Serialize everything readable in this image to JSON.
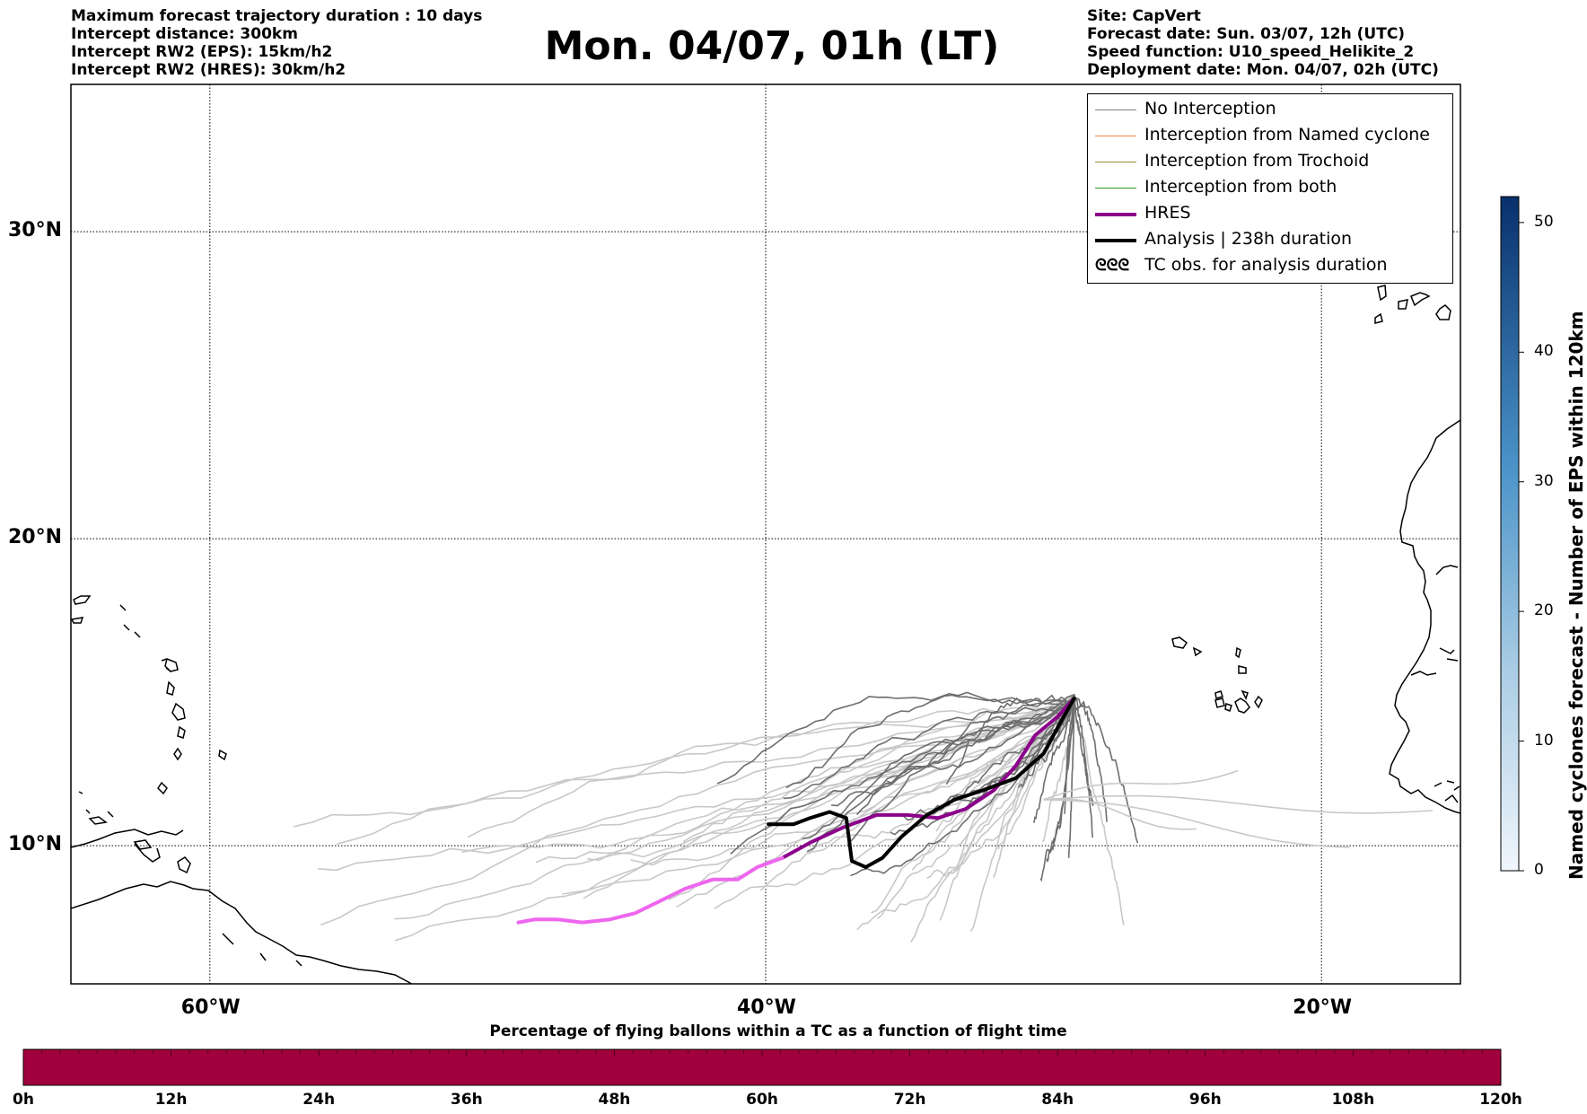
{
  "header": {
    "left_lines": [
      "Maximum forecast trajectory duration : 10 days",
      "Intercept distance: 300km",
      "Intercept RW2 (EPS):  15km/h2",
      "Intercept RW2 (HRES): 30km/h2"
    ],
    "right_lines": [
      "Site: CapVert",
      "Forecast date: Sun. 03/07, 12h (UTC)",
      "Speed function: U10_speed_Helikite_2",
      "Deployment date: Mon. 04/07, 02h (UTC)"
    ],
    "title": "Mon. 04/07, 01h (LT)"
  },
  "map": {
    "lon_range": [
      -65,
      -15
    ],
    "lat_range": [
      5.5,
      34.8
    ],
    "lat_labels": [
      "30°N",
      "20°N",
      "10°N"
    ],
    "lat_values": [
      30,
      20,
      10
    ],
    "lon_labels": [
      "60°W",
      "40°W",
      "20°W"
    ],
    "lon_values": [
      -60,
      -40,
      -20
    ],
    "colors": {
      "no_interception_dark": "#6e6e6e",
      "no_interception_light": "#c8c8c8",
      "hres_dark": "#8b008b",
      "hres_light": "#ee66ee",
      "analysis": "#000000",
      "coast": "#000000"
    }
  },
  "legend": {
    "items": [
      {
        "label": "No Interception",
        "color": "#808080",
        "width": 1.5,
        "icon": "line"
      },
      {
        "label": "Interception from Named cyclone",
        "color": "#ff7f50",
        "width": 1.5,
        "icon": "line"
      },
      {
        "label": "Interception from Trochoid",
        "color": "#9a8a30",
        "width": 1.5,
        "icon": "line"
      },
      {
        "label": "Interception from both",
        "color": "#2ca02c",
        "width": 1.5,
        "icon": "line"
      },
      {
        "label": "HRES",
        "color": "#8b008b",
        "width": 4,
        "icon": "line"
      },
      {
        "label": "Analysis | 238h duration",
        "color": "#000000",
        "width": 4,
        "icon": "line"
      },
      {
        "label": "TC obs. for analysis duration",
        "color": "#000000",
        "width": 0,
        "icon": "cyclone-symbols-icon"
      }
    ],
    "cyclone_glyphs": "ᘓᘓᘓ"
  },
  "colorbar": {
    "title": "Named cyclones forecast - Number of EPS within 120km",
    "min": 0,
    "max": 52,
    "ticks": [
      "0",
      "10",
      "20",
      "30",
      "40",
      "50"
    ],
    "tick_values": [
      0,
      10,
      20,
      30,
      40,
      50
    ],
    "color_low": "#e3eef9",
    "color_high": "#08306b"
  },
  "timebar": {
    "title": "Percentage of flying ballons within a TC as a function of flight time",
    "ticks": [
      "0h",
      "12h",
      "24h",
      "36h",
      "48h",
      "60h",
      "72h",
      "84h",
      "96h",
      "108h",
      "120h"
    ],
    "tick_hours": [
      0,
      12,
      24,
      36,
      48,
      60,
      72,
      84,
      96,
      108,
      120
    ],
    "color": "#a0003c"
  },
  "tracks": {
    "hres": [
      [
        -28.9,
        14.8
      ],
      [
        -29.5,
        14.2
      ],
      [
        -30.3,
        13.6
      ],
      [
        -31,
        12.6
      ],
      [
        -31.8,
        11.8
      ],
      [
        -32.8,
        11.2
      ],
      [
        -33.8,
        10.9
      ],
      [
        -34.9,
        11.0
      ],
      [
        -36.0,
        11.0
      ],
      [
        -37.2,
        10.6
      ],
      [
        -38.4,
        10.1
      ],
      [
        -39.4,
        9.6
      ],
      [
        -40.3,
        9.3
      ],
      [
        -41,
        8.9
      ],
      [
        -41.9,
        8.9
      ],
      [
        -42.9,
        8.6
      ],
      [
        -43.8,
        8.2
      ],
      [
        -44.7,
        7.8
      ],
      [
        -45.6,
        7.6
      ],
      [
        -46.6,
        7.5
      ],
      [
        -47.5,
        7.6
      ],
      [
        -48.3,
        7.6
      ],
      [
        -48.9,
        7.5
      ]
    ],
    "hres_split_index": 11,
    "analysis": [
      [
        -28.9,
        14.8
      ],
      [
        -29.4,
        14.0
      ],
      [
        -30,
        13.0
      ],
      [
        -31,
        12.2
      ],
      [
        -32.2,
        11.8
      ],
      [
        -33.2,
        11.5
      ],
      [
        -34.2,
        11.0
      ],
      [
        -35.1,
        10.3
      ],
      [
        -35.8,
        9.6
      ],
      [
        -36.4,
        9.3
      ],
      [
        -36.9,
        9.5
      ],
      [
        -37.0,
        10.2
      ],
      [
        -37.1,
        10.9
      ],
      [
        -37.7,
        11.1
      ],
      [
        -38.4,
        10.9
      ],
      [
        -39.0,
        10.7
      ],
      [
        -39.9,
        10.7
      ]
    ],
    "ensemble_seeds": 60
  }
}
